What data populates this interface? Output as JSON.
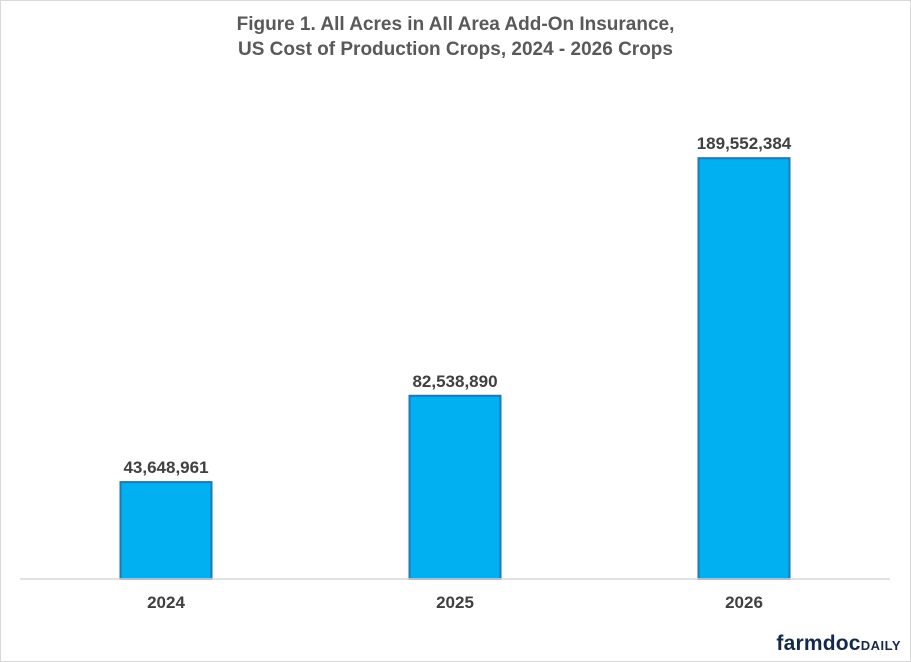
{
  "chart_data": {
    "type": "bar",
    "title_lines": [
      "Figure 1.  All Acres in All Area Add-On Insurance,",
      "US Cost of Production  Crops, 2024 - 2026 Crops"
    ],
    "categories": [
      "2024",
      "2025",
      "2026"
    ],
    "values": [
      43648961,
      82538890,
      189552384
    ],
    "data_labels": [
      "43,648,961",
      "82,538,890",
      "189,552,384"
    ],
    "ylim": [
      0,
      200000000
    ],
    "grid": false,
    "legend": "none",
    "bar_color": "#00b0f0",
    "bar_edge_color": "#1f77b4"
  },
  "branding": {
    "part_a": "farmdoc",
    "part_b": "DAILY"
  }
}
